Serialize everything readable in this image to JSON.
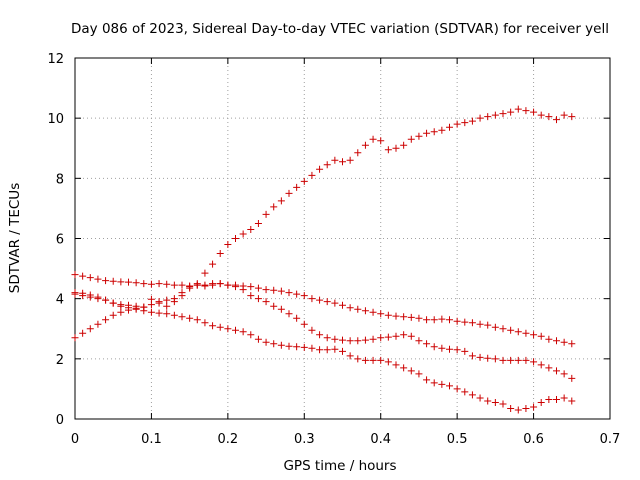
{
  "chart_data": {
    "type": "scatter",
    "title": "Day 086 of 2023, Sidereal Day-to-day VTEC variation (SDTVAR) for receiver yell",
    "xlabel": "GPS time / hours",
    "ylabel": "SDTVAR / TECUs",
    "xlim": [
      0,
      0.7
    ],
    "ylim": [
      0,
      12
    ],
    "xticks": [
      0,
      0.1,
      0.2,
      0.3,
      0.4,
      0.5,
      0.6,
      0.7
    ],
    "yticks": [
      0,
      2,
      4,
      6,
      8,
      10,
      12
    ],
    "xtick_labels": [
      "0",
      "0.1",
      "0.2",
      "0.3",
      "0.4",
      "0.5",
      "0.6",
      "0.7"
    ],
    "ytick_labels": [
      "0",
      "2",
      "4",
      "6",
      "8",
      "10",
      "12"
    ],
    "grid": true,
    "marker": "plus",
    "color": "#cc0000",
    "series": [
      {
        "name": "series-1",
        "x": [
          0.0,
          0.01,
          0.02,
          0.03,
          0.04,
          0.05,
          0.06,
          0.07,
          0.08,
          0.09,
          0.1,
          0.11,
          0.12,
          0.13,
          0.14,
          0.15,
          0.16,
          0.17,
          0.18,
          0.19,
          0.2,
          0.21,
          0.22,
          0.23,
          0.24,
          0.25,
          0.26,
          0.27,
          0.28,
          0.29,
          0.3,
          0.31,
          0.32,
          0.33,
          0.34,
          0.35,
          0.36,
          0.37,
          0.38,
          0.39,
          0.4,
          0.41,
          0.42,
          0.43,
          0.44,
          0.45,
          0.46,
          0.47,
          0.48,
          0.49,
          0.5,
          0.51,
          0.52,
          0.53,
          0.54,
          0.55,
          0.56,
          0.57,
          0.58,
          0.59,
          0.6,
          0.61,
          0.62,
          0.63,
          0.64,
          0.65
        ],
        "values": [
          2.7,
          2.85,
          3.0,
          3.15,
          3.3,
          3.45,
          3.55,
          3.62,
          3.68,
          3.72,
          3.98,
          3.85,
          3.75,
          3.9,
          4.1,
          4.35,
          4.5,
          4.85,
          5.15,
          5.5,
          5.8,
          6.0,
          6.15,
          6.3,
          6.5,
          6.8,
          7.05,
          7.25,
          7.5,
          7.7,
          7.9,
          8.1,
          8.3,
          8.45,
          8.6,
          8.55,
          8.6,
          8.85,
          9.1,
          9.3,
          9.25,
          8.95,
          9.0,
          9.1,
          9.3,
          9.4,
          9.5,
          9.55,
          9.6,
          9.7,
          9.8,
          9.85,
          9.9,
          10.0,
          10.05,
          10.1,
          10.15,
          10.2,
          10.3,
          10.25,
          10.2,
          10.1,
          10.05,
          9.95,
          10.1,
          10.05
        ]
      },
      {
        "name": "series-2",
        "x": [
          0.0,
          0.01,
          0.02,
          0.03,
          0.04,
          0.05,
          0.06,
          0.07,
          0.08,
          0.09,
          0.1,
          0.11,
          0.12,
          0.13,
          0.14,
          0.15,
          0.16,
          0.17,
          0.18,
          0.19,
          0.2,
          0.21,
          0.22,
          0.23,
          0.24,
          0.25,
          0.26,
          0.27,
          0.28,
          0.29,
          0.3,
          0.31,
          0.32,
          0.33,
          0.34,
          0.35,
          0.36,
          0.37,
          0.38,
          0.39,
          0.4,
          0.41,
          0.42,
          0.43,
          0.44,
          0.45,
          0.46,
          0.47,
          0.48,
          0.49,
          0.5,
          0.51,
          0.52,
          0.53,
          0.54,
          0.55,
          0.56,
          0.57,
          0.58,
          0.59,
          0.6,
          0.61,
          0.62,
          0.63,
          0.64,
          0.65
        ],
        "values": [
          4.8,
          4.75,
          4.7,
          4.65,
          4.6,
          4.58,
          4.56,
          4.55,
          4.53,
          4.5,
          4.48,
          4.5,
          4.48,
          4.45,
          4.45,
          4.42,
          4.45,
          4.45,
          4.5,
          4.5,
          4.45,
          4.45,
          4.42,
          4.4,
          4.35,
          4.3,
          4.28,
          4.25,
          4.2,
          4.15,
          4.1,
          4.0,
          3.95,
          3.9,
          3.85,
          3.78,
          3.7,
          3.65,
          3.6,
          3.55,
          3.5,
          3.45,
          3.42,
          3.4,
          3.38,
          3.35,
          3.3,
          3.3,
          3.32,
          3.3,
          3.25,
          3.22,
          3.2,
          3.15,
          3.12,
          3.05,
          3.0,
          2.95,
          2.9,
          2.85,
          2.8,
          2.75,
          2.65,
          2.6,
          2.55,
          2.5
        ]
      },
      {
        "name": "series-3",
        "x": [
          0.0,
          0.01,
          0.02,
          0.03,
          0.04,
          0.05,
          0.06,
          0.07,
          0.08,
          0.09,
          0.1,
          0.11,
          0.12,
          0.13,
          0.14,
          0.15,
          0.16,
          0.17,
          0.18,
          0.19,
          0.2,
          0.21,
          0.22,
          0.23,
          0.24,
          0.25,
          0.26,
          0.27,
          0.28,
          0.29,
          0.3,
          0.31,
          0.32,
          0.33,
          0.34,
          0.35,
          0.36,
          0.37,
          0.38,
          0.39,
          0.4,
          0.41,
          0.42,
          0.43,
          0.44,
          0.45,
          0.46,
          0.47,
          0.48,
          0.49,
          0.5,
          0.51,
          0.52,
          0.53,
          0.54,
          0.55,
          0.56,
          0.57,
          0.58,
          0.59,
          0.6,
          0.61,
          0.62,
          0.63,
          0.64,
          0.65
        ],
        "values": [
          4.15,
          4.1,
          4.05,
          4.0,
          3.95,
          3.85,
          3.75,
          3.7,
          3.65,
          3.6,
          3.55,
          3.52,
          3.5,
          3.45,
          3.4,
          3.35,
          3.3,
          3.2,
          3.1,
          3.05,
          3.0,
          2.95,
          2.9,
          2.8,
          2.65,
          2.55,
          2.5,
          2.45,
          2.42,
          2.4,
          2.38,
          2.35,
          2.3,
          2.3,
          2.32,
          2.25,
          2.1,
          2.0,
          1.95,
          1.95,
          1.95,
          1.9,
          1.8,
          1.7,
          1.6,
          1.5,
          1.3,
          1.2,
          1.15,
          1.1,
          1.0,
          0.9,
          0.8,
          0.7,
          0.6,
          0.55,
          0.5,
          0.35,
          0.3,
          0.35,
          0.4,
          0.55,
          0.65,
          0.65,
          0.7,
          0.6
        ]
      },
      {
        "name": "series-4",
        "x": [
          0.0,
          0.01,
          0.02,
          0.03,
          0.04,
          0.05,
          0.06,
          0.07,
          0.08,
          0.09,
          0.1,
          0.11,
          0.12,
          0.13,
          0.14,
          0.15,
          0.16,
          0.17,
          0.18,
          0.19,
          0.2,
          0.21,
          0.22,
          0.23,
          0.24,
          0.25,
          0.26,
          0.27,
          0.28,
          0.29,
          0.3,
          0.31,
          0.32,
          0.33,
          0.34,
          0.35,
          0.36,
          0.37,
          0.38,
          0.39,
          0.4,
          0.41,
          0.42,
          0.43,
          0.44,
          0.45,
          0.46,
          0.47,
          0.48,
          0.49,
          0.5,
          0.51,
          0.52,
          0.53,
          0.54,
          0.55,
          0.56,
          0.57,
          0.58,
          0.59,
          0.6,
          0.61,
          0.62,
          0.63,
          0.64,
          0.65
        ],
        "values": [
          4.2,
          4.18,
          4.12,
          4.05,
          3.95,
          3.85,
          3.8,
          3.78,
          3.75,
          3.72,
          3.8,
          3.9,
          3.95,
          4.0,
          4.2,
          4.4,
          4.45,
          4.42,
          4.45,
          4.5,
          4.45,
          4.4,
          4.3,
          4.1,
          4.0,
          3.9,
          3.75,
          3.65,
          3.5,
          3.35,
          3.15,
          2.95,
          2.8,
          2.7,
          2.65,
          2.62,
          2.6,
          2.6,
          2.62,
          2.65,
          2.7,
          2.72,
          2.75,
          2.8,
          2.75,
          2.6,
          2.5,
          2.4,
          2.35,
          2.32,
          2.3,
          2.25,
          2.1,
          2.05,
          2.02,
          2.0,
          1.95,
          1.95,
          1.95,
          1.95,
          1.9,
          1.8,
          1.7,
          1.6,
          1.5,
          1.35
        ]
      }
    ]
  }
}
